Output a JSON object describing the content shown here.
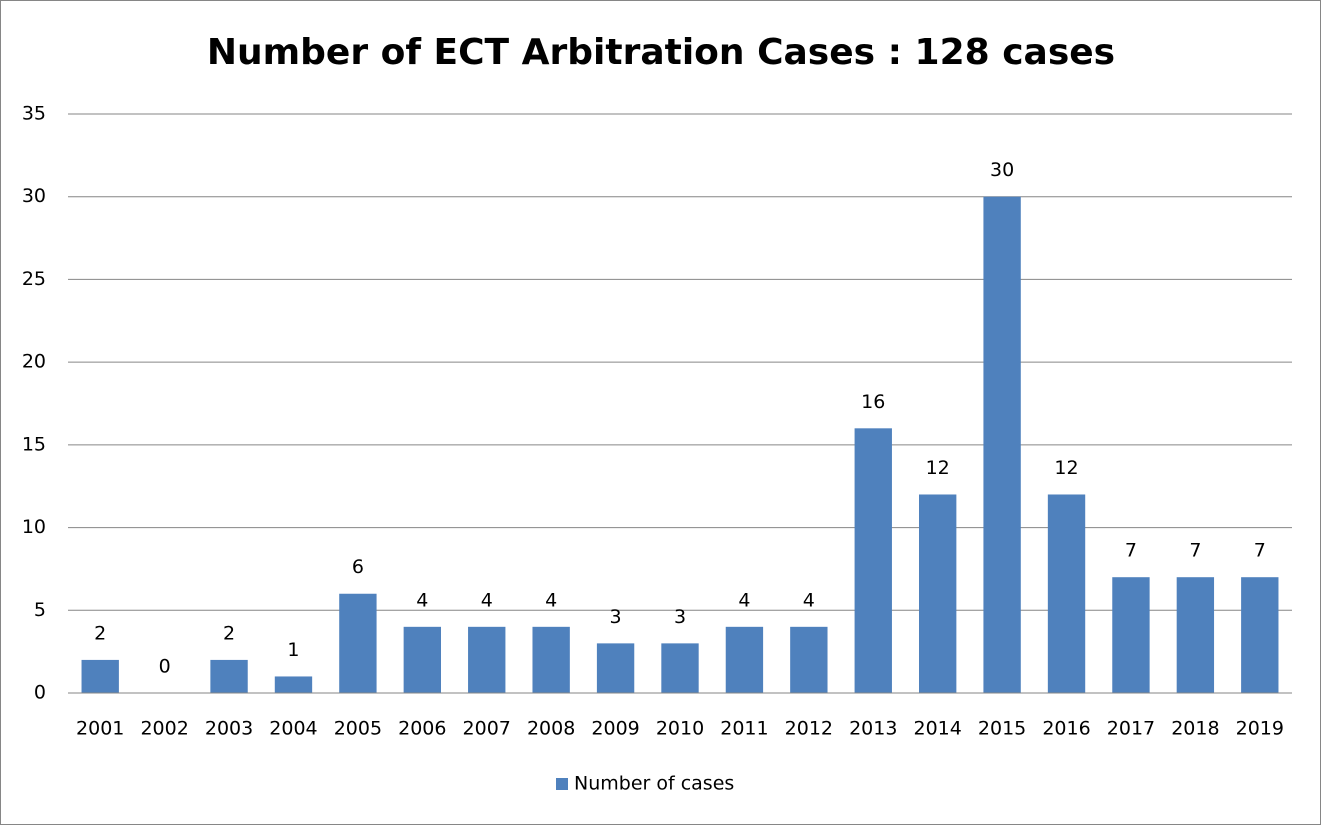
{
  "chart_data": {
    "type": "bar",
    "title": "Number of ECT Arbitration Cases : 128 cases",
    "categories": [
      "2001",
      "2002",
      "2003",
      "2004",
      "2005",
      "2006",
      "2007",
      "2008",
      "2009",
      "2010",
      "2011",
      "2012",
      "2013",
      "2014",
      "2015",
      "2016",
      "2017",
      "2018",
      "2019"
    ],
    "series": [
      {
        "name": "Number of cases",
        "color": "#4f81bd",
        "values": [
          2,
          0,
          2,
          1,
          6,
          4,
          4,
          4,
          3,
          3,
          4,
          4,
          16,
          12,
          30,
          12,
          7,
          7,
          7
        ]
      }
    ],
    "ylim": [
      0,
      35
    ],
    "yticks": [
      0,
      5,
      10,
      15,
      20,
      25,
      30,
      35
    ],
    "grid": true,
    "legend": "bottom",
    "data_labels": true
  }
}
